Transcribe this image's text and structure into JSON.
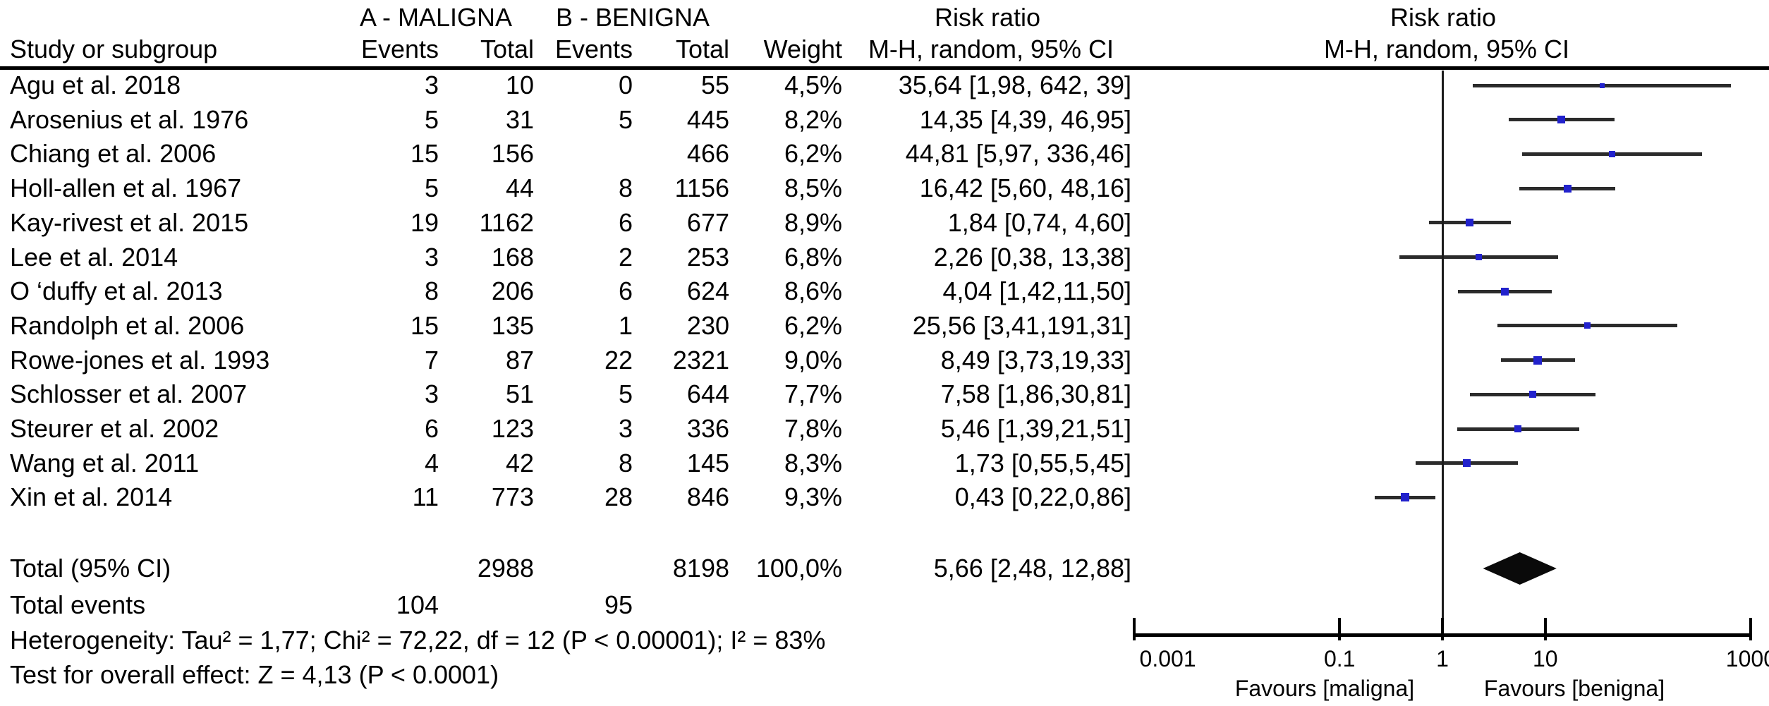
{
  "header": {
    "group_a": "A - MALIGNA",
    "group_b": "B - BENIGNA",
    "risk_ratio_left": {
      "line1": "Risk ratio",
      "line2": "M-H, random, 95% CI"
    },
    "risk_ratio_right": {
      "line1": "Risk ratio",
      "line2": "M-H, random, 95% CI"
    },
    "study_col": "Study or subgroup",
    "events_a_col": "Events",
    "total_a_col": "Total",
    "events_b_col": "Events",
    "total_b_col": "Total",
    "weight_col": "Weight"
  },
  "chart_data": {
    "type": "forest",
    "x_scale": "log10",
    "x_range": [
      0.001,
      1000
    ],
    "axis_ticks": [
      {
        "value": 0.001,
        "label": "0.001"
      },
      {
        "value": 0.1,
        "label": "0.1"
      },
      {
        "value": 1,
        "label": "1"
      },
      {
        "value": 10,
        "label": "10"
      },
      {
        "value": 1000,
        "label": "1000"
      }
    ],
    "favours_left": "Favours [maligna]",
    "favours_right": "Favours [benigna]",
    "studies": [
      {
        "label": "Agu et al. 2018",
        "events_a": "3",
        "total_a": "10",
        "events_b": "0",
        "total_b": "55",
        "weight": "4,5%",
        "ci_text": "35,64 [1,98, 642, 39]",
        "rr": 35.64,
        "ci_low": 1.98,
        "ci_high": 642.39,
        "weight_num": 4.5
      },
      {
        "label": "Arosenius et al. 1976",
        "events_a": "5",
        "total_a": "31",
        "events_b": "5",
        "total_b": "445",
        "weight": "8,2%",
        "ci_text": "14,35 [4,39, 46,95]",
        "rr": 14.35,
        "ci_low": 4.39,
        "ci_high": 46.95,
        "weight_num": 8.2
      },
      {
        "label": "Chiang et al. 2006",
        "events_a": "15",
        "total_a": "156",
        "events_b": "",
        "total_b": "466",
        "weight": "6,2%",
        "ci_text": "44,81 [5,97, 336,46]",
        "rr": 44.81,
        "ci_low": 5.97,
        "ci_high": 336.46,
        "weight_num": 6.2
      },
      {
        "label": "Holl-allen et al. 1967",
        "events_a": "5",
        "total_a": "44",
        "events_b": "8",
        "total_b": "1156",
        "weight": "8,5%",
        "ci_text": "16,42 [5,60, 48,16]",
        "rr": 16.42,
        "ci_low": 5.6,
        "ci_high": 48.16,
        "weight_num": 8.5
      },
      {
        "label": "Kay-rivest et al. 2015",
        "events_a": "19",
        "total_a": "1162",
        "events_b": "6",
        "total_b": "677",
        "weight": "8,9%",
        "ci_text": "1,84 [0,74, 4,60]",
        "rr": 1.84,
        "ci_low": 0.74,
        "ci_high": 4.6,
        "weight_num": 8.9
      },
      {
        "label": "Lee et al. 2014",
        "events_a": "3",
        "total_a": "168",
        "events_b": "2",
        "total_b": "253",
        "weight": "6,8%",
        "ci_text": "2,26 [0,38, 13,38]",
        "rr": 2.26,
        "ci_low": 0.38,
        "ci_high": 13.38,
        "weight_num": 6.8
      },
      {
        "label": "O ‘duffy et al. 2013",
        "events_a": "8",
        "total_a": "206",
        "events_b": "6",
        "total_b": "624",
        "weight": "8,6%",
        "ci_text": "4,04 [1,42,11,50]",
        "rr": 4.04,
        "ci_low": 1.42,
        "ci_high": 11.5,
        "weight_num": 8.6
      },
      {
        "label": "Randolph et al. 2006",
        "events_a": "15",
        "total_a": "135",
        "events_b": "1",
        "total_b": "230",
        "weight": "6,2%",
        "ci_text": "25,56 [3,41,191,31]",
        "rr": 25.56,
        "ci_low": 3.41,
        "ci_high": 191.31,
        "weight_num": 6.2
      },
      {
        "label": "Rowe-jones et al. 1993",
        "events_a": "7",
        "total_a": "87",
        "events_b": "22",
        "total_b": "2321",
        "weight": "9,0%",
        "ci_text": "8,49 [3,73,19,33]",
        "rr": 8.49,
        "ci_low": 3.73,
        "ci_high": 19.33,
        "weight_num": 9.0
      },
      {
        "label": "Schlosser et al. 2007",
        "events_a": "3",
        "total_a": "51",
        "events_b": "5",
        "total_b": "644",
        "weight": "7,7%",
        "ci_text": "7,58 [1,86,30,81]",
        "rr": 7.58,
        "ci_low": 1.86,
        "ci_high": 30.81,
        "weight_num": 7.7
      },
      {
        "label": "Steurer et al. 2002",
        "events_a": "6",
        "total_a": "123",
        "events_b": "3",
        "total_b": "336",
        "weight": "7,8%",
        "ci_text": "5,46 [1,39,21,51]",
        "rr": 5.46,
        "ci_low": 1.39,
        "ci_high": 21.51,
        "weight_num": 7.8
      },
      {
        "label": "Wang et al. 2011",
        "events_a": "4",
        "total_a": "42",
        "events_b": "8",
        "total_b": "145",
        "weight": "8,3%",
        "ci_text": "1,73 [0,55,5,45]",
        "rr": 1.73,
        "ci_low": 0.55,
        "ci_high": 5.45,
        "weight_num": 8.3
      },
      {
        "label": "Xin et al. 2014",
        "events_a": "11",
        "total_a": "773",
        "events_b": "28",
        "total_b": "846",
        "weight": "9,3%",
        "ci_text": "0,43 [0,22,0,86]",
        "rr": 0.43,
        "ci_low": 0.22,
        "ci_high": 0.86,
        "weight_num": 9.3
      }
    ],
    "total": {
      "label": "Total (95% CI)",
      "total_a": "2988",
      "total_b": "8198",
      "weight": "100,0%",
      "ci_text": "5,66 [2,48, 12,88]",
      "rr": 5.66,
      "ci_low": 2.48,
      "ci_high": 12.88
    },
    "total_events": {
      "label": "Total events",
      "events_a": "104",
      "events_b": "95"
    },
    "heterogeneity": "Heterogeneity: Tau² = 1,77; Chi² = 72,22, df = 12 (P < 0.00001); I² = 83%",
    "overall_effect": "Test for overall effect: Z = 4,13 (P < 0.0001)"
  },
  "colors": {
    "marker": "#2222cc",
    "ci_line": "#2b2b2b",
    "diamond": "#0a0a0a",
    "axis": "#000000",
    "text": "#000000",
    "background": "#ffffff"
  }
}
